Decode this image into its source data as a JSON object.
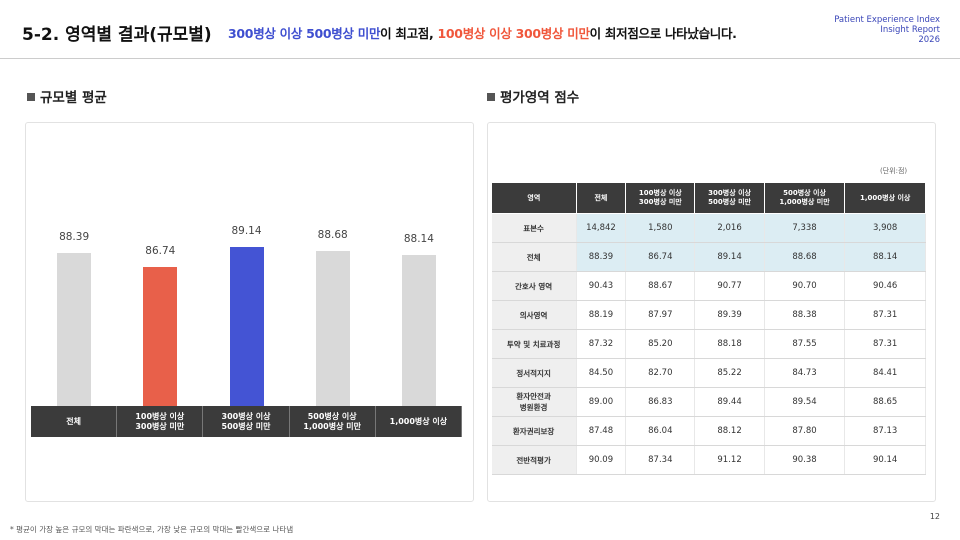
{
  "header": {
    "title": "5-2. 영역별 결과(규모별)",
    "subtitle": [
      {
        "text": "300병상 이상 500병상 미만",
        "color": "#3f4fd0"
      },
      {
        "text": "이 최고점, ",
        "color": "#111111"
      },
      {
        "text": "100병상 이상 300병상 미만",
        "color": "#f0573c"
      },
      {
        "text": "이 최저점으로 나타났습니다.",
        "color": "#111111"
      }
    ],
    "brand": [
      "Patient Experience Index",
      "Insight Report",
      "2026"
    ]
  },
  "chart_data": {
    "type": "bar",
    "title": "규모별 평균",
    "categories": [
      "전체",
      "100병상 이상\n300병상 미만",
      "300병상 이상\n500병상 미만",
      "500병상 이상\n1,000병상 미만",
      "1,000병상 이상"
    ],
    "values": [
      88.39,
      86.74,
      89.14,
      88.68,
      88.14
    ],
    "colors": [
      "#d9d9d9",
      "#e8604a",
      "#4454d4",
      "#d9d9d9",
      "#d9d9d9"
    ],
    "ylim": [
      70,
      95
    ]
  },
  "table": {
    "title": "평가영역 점수",
    "unit": "(단위:점)",
    "header": [
      "영역",
      "전체",
      "100병상 이상\n300병상 미만",
      "300병상 이상\n500병상 미만",
      "500병상 이상\n1,000병상 미만",
      "1,000병상 이상"
    ],
    "rows": [
      [
        "표본수",
        "14,842",
        "1,580",
        "2,016",
        "7,338",
        "3,908"
      ],
      [
        "전체",
        "88.39",
        "86.74",
        "89.14",
        "88.68",
        "88.14"
      ],
      [
        "간호사 영역",
        "90.43",
        "88.67",
        "90.77",
        "90.70",
        "90.46"
      ],
      [
        "의사영역",
        "88.19",
        "87.97",
        "89.39",
        "88.38",
        "87.31"
      ],
      [
        "투약 및 치료과정",
        "87.32",
        "85.20",
        "88.18",
        "87.55",
        "87.31"
      ],
      [
        "정서적지지",
        "84.50",
        "82.70",
        "85.22",
        "84.73",
        "84.41"
      ],
      [
        "환자안전과\n병원환경",
        "89.00",
        "86.83",
        "89.44",
        "89.54",
        "88.65"
      ],
      [
        "환자권리보장",
        "87.48",
        "86.04",
        "88.12",
        "87.80",
        "87.13"
      ],
      [
        "전반적평가",
        "90.09",
        "87.34",
        "91.12",
        "90.38",
        "90.14"
      ]
    ],
    "highlight_rows": [
      0,
      1
    ]
  },
  "footnote": "* 평균이 가장 높은 규모의 막대는 파란색으로, 가장 낮은 규모의 막대는 빨간색으로 나타냄",
  "page": "12"
}
